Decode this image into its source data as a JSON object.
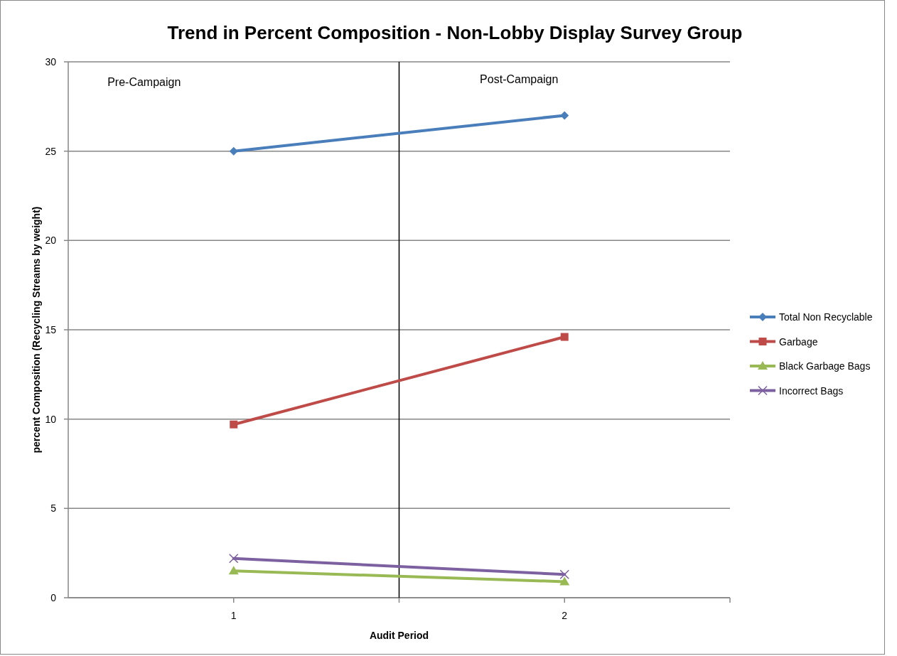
{
  "chart_data": {
    "type": "line",
    "title": "Trend in  Percent Composition - Non-Lobby Display Survey Group",
    "xlabel": "Audit Period",
    "ylabel": "percent Composition (Recycling Streams by weight)",
    "x": [
      1,
      2
    ],
    "xlim": [
      0.5,
      2.5
    ],
    "xticks": [
      1,
      {
        "value": 1.5,
        "label": null
      },
      2,
      {
        "value": 2.5,
        "label": null
      }
    ],
    "ylim": [
      0,
      30
    ],
    "yticks": [
      0,
      5,
      10,
      15,
      20,
      25,
      30
    ],
    "grid": "y",
    "legend": "right",
    "ref_lines": [
      {
        "axis": "x",
        "value": 1.5,
        "label": null,
        "color": "#000000"
      }
    ],
    "annotations": [
      "Pre-Campaign",
      "Post-Campaign"
    ],
    "series": [
      {
        "name": "Total Non Recyclable",
        "color": "#4a7ebb",
        "marker": "diamond",
        "values": [
          25,
          27
        ]
      },
      {
        "name": "Garbage",
        "color": "#be4b48",
        "marker": "square",
        "values": [
          9.7,
          14.6
        ]
      },
      {
        "name": "Black Garbage Bags",
        "color": "#98b954",
        "marker": "triangle",
        "values": [
          1.5,
          0.9
        ]
      },
      {
        "name": "Incorrect Bags",
        "color": "#7d60a0",
        "marker": "cross",
        "values": [
          2.2,
          1.3
        ]
      }
    ]
  }
}
